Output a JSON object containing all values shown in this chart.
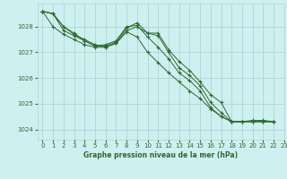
{
  "title": "Graphe pression niveau de la mer (hPa)",
  "bg_color": "#cff0f0",
  "grid_color": "#a8d8d8",
  "line_color": "#2d6a2d",
  "xlim": [
    -0.5,
    23
  ],
  "ylim": [
    1023.6,
    1028.9
  ],
  "yticks": [
    1024,
    1025,
    1026,
    1027,
    1028
  ],
  "xticks": [
    0,
    1,
    2,
    3,
    4,
    5,
    6,
    7,
    8,
    9,
    10,
    11,
    12,
    13,
    14,
    15,
    16,
    17,
    18,
    19,
    20,
    21,
    22,
    23
  ],
  "xlabel_fontsize": 5.5,
  "tick_fontsize": 5,
  "series": [
    {
      "x": [
        0,
        1,
        2,
        3,
        4,
        5,
        6,
        7,
        8,
        9,
        10,
        11,
        12,
        13,
        14,
        15,
        16,
        17,
        18,
        19,
        20,
        21,
        22
      ],
      "y": [
        1028.6,
        1028.5,
        1028.0,
        1027.7,
        1027.5,
        1027.3,
        1027.2,
        1027.35,
        1027.85,
        1028.0,
        1027.75,
        1027.75,
        1027.1,
        1026.65,
        1026.3,
        1025.85,
        1025.35,
        1025.05,
        1024.3,
        1024.3,
        1024.35,
        1024.35,
        1024.3
      ]
    },
    {
      "x": [
        0,
        1,
        2,
        3,
        4,
        5,
        6,
        7,
        8,
        9,
        10,
        11,
        12,
        13,
        14,
        15,
        16,
        17,
        18,
        19,
        20,
        21,
        22
      ],
      "y": [
        1028.6,
        1028.5,
        1027.85,
        1027.65,
        1027.45,
        1027.25,
        1027.25,
        1027.4,
        1027.95,
        1028.15,
        1027.75,
        1027.65,
        1027.0,
        1026.4,
        1026.1,
        1025.7,
        1025.05,
        1024.65,
        1024.3,
        1024.3,
        1024.3,
        1024.3,
        1024.3
      ]
    },
    {
      "x": [
        0,
        1,
        2,
        3,
        4,
        5,
        6,
        7,
        8,
        9,
        10,
        11,
        12,
        13,
        14,
        15,
        16,
        17,
        18,
        19,
        20,
        21,
        22
      ],
      "y": [
        1028.6,
        1028.5,
        1028.0,
        1027.75,
        1027.45,
        1027.25,
        1027.3,
        1027.45,
        1028.0,
        1028.05,
        1027.6,
        1027.2,
        1026.75,
        1026.2,
        1025.9,
        1025.5,
        1024.85,
        1024.5,
        1024.3,
        1024.3,
        1024.3,
        1024.3,
        1024.3
      ]
    },
    {
      "x": [
        0,
        1,
        2,
        3,
        4,
        5,
        6,
        7,
        8,
        9,
        10,
        11,
        12,
        13,
        14,
        15,
        16,
        17,
        18,
        19,
        20,
        21,
        22
      ],
      "y": [
        1028.6,
        1028.0,
        1027.7,
        1027.5,
        1027.3,
        1027.2,
        1027.2,
        1027.35,
        1027.8,
        1027.6,
        1027.0,
        1026.6,
        1026.2,
        1025.85,
        1025.5,
        1025.2,
        1024.8,
        1024.5,
        1024.3,
        1024.3,
        1024.3,
        1024.3,
        1024.3
      ]
    }
  ]
}
